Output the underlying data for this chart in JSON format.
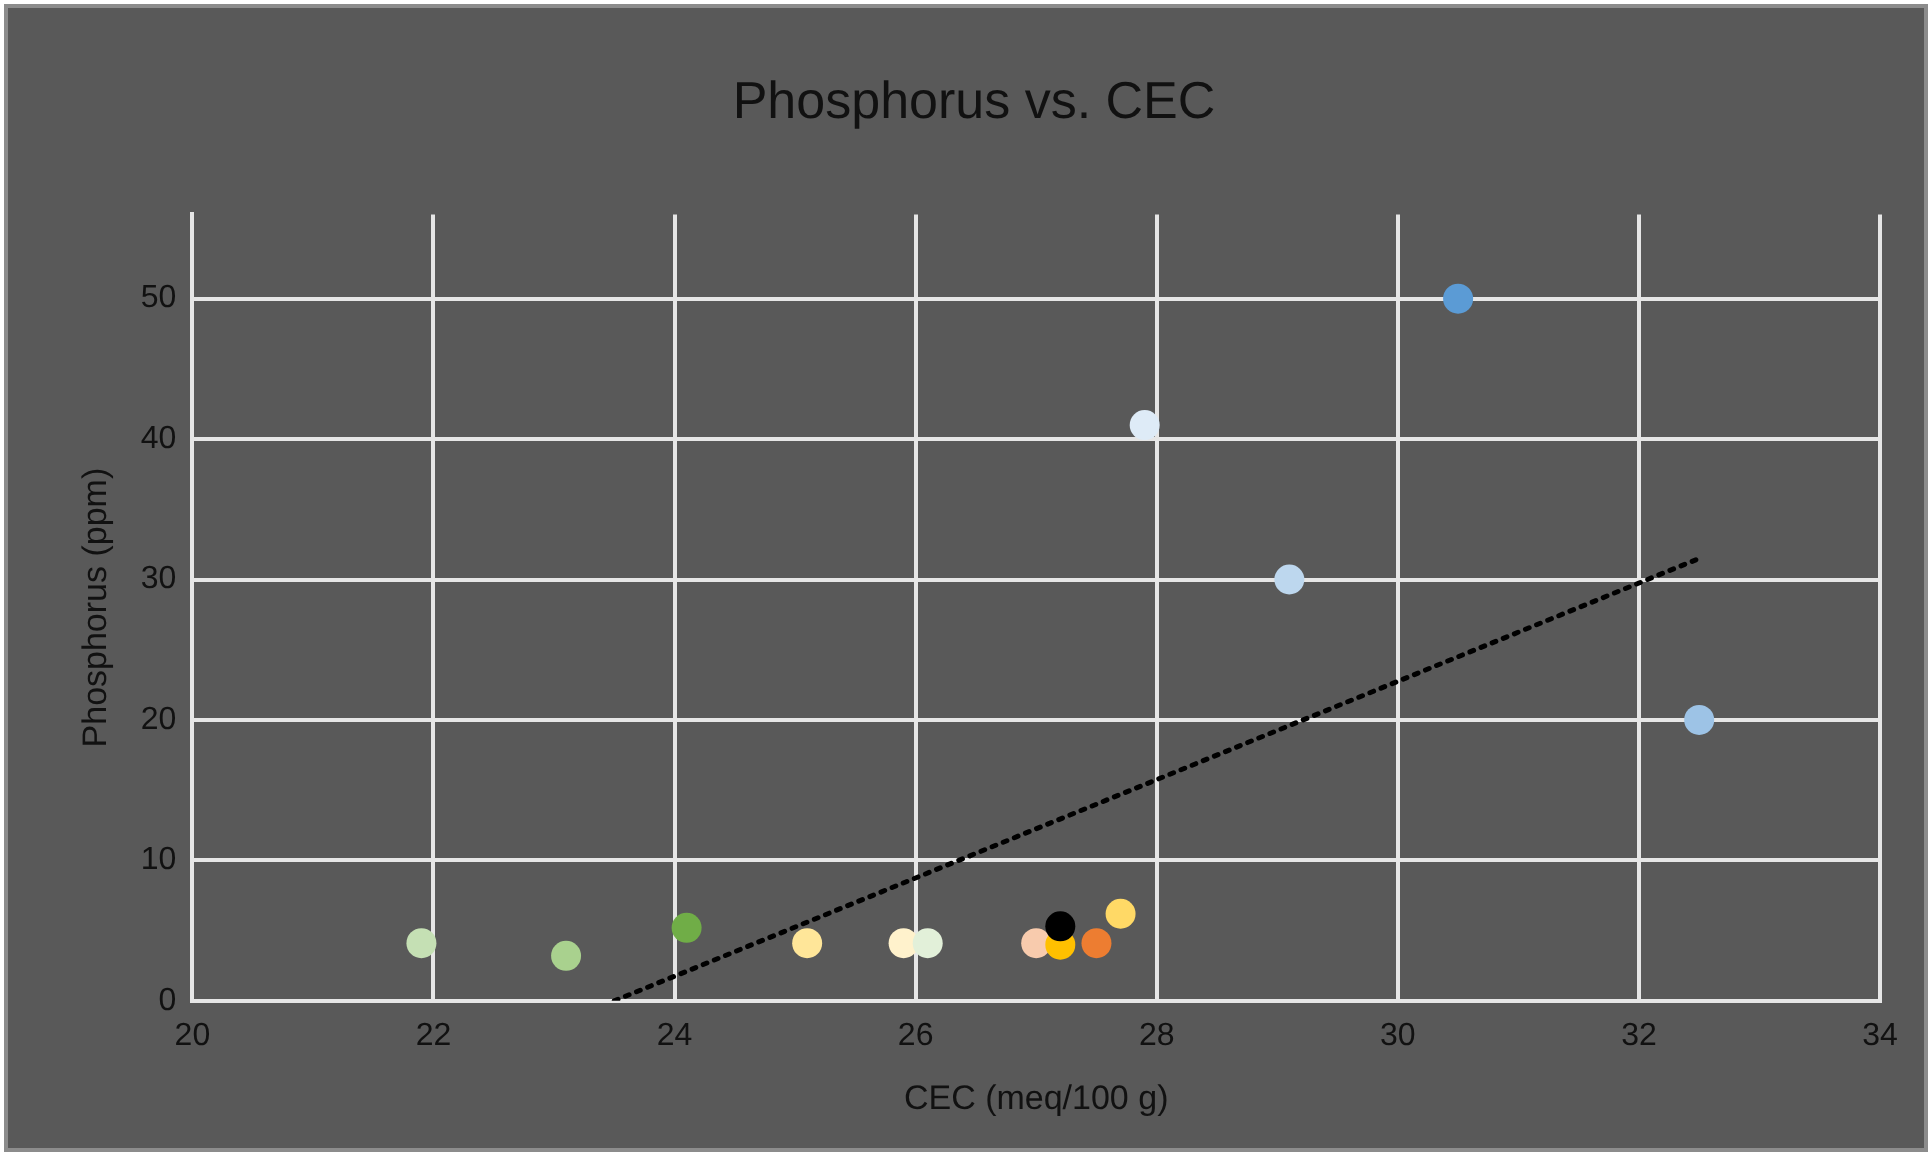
{
  "chart_data": {
    "type": "scatter",
    "title": "Phosphorus vs. CEC",
    "xlabel": "CEC (meq/100 g)",
    "ylabel": "Phosphorus (ppm)",
    "xlim": [
      20,
      34
    ],
    "xticks": [
      20,
      22,
      24,
      26,
      28,
      30,
      32,
      34
    ],
    "ylim": [
      0,
      56
    ],
    "yticks": [
      0,
      10,
      20,
      30,
      40,
      50
    ],
    "grid": true,
    "legend": false,
    "marker": "circle",
    "series": [
      {
        "type": "scatter",
        "x": [
          21.9,
          23.1,
          24.1,
          25.1,
          25.9,
          26.1,
          27.0,
          27.2,
          27.2,
          27.5,
          27.7,
          27.9,
          29.1,
          30.5,
          32.5
        ],
        "values": [
          4.1,
          3.2,
          5.2,
          4.1,
          4.1,
          4.1,
          4.1,
          4.0,
          5.3,
          4.1,
          6.2,
          41,
          30,
          50,
          20
        ],
        "colors": [
          "#c5e0b4",
          "#a9d18e",
          "#70ad47",
          "#ffe699",
          "#fff2cc",
          "#e2f0d9",
          "#f8cbad",
          "#ffc000",
          "#000000",
          "#ed7d31",
          "#ffd966",
          "#deebf7",
          "#bdd7ee",
          "#5b9bd5",
          "#9dc3e6"
        ]
      },
      {
        "type": "line",
        "x": [
          23.5,
          32.5
        ],
        "values": [
          0,
          31.5
        ],
        "color": "#000000",
        "line_style": "dotted",
        "marker": "none"
      }
    ]
  }
}
